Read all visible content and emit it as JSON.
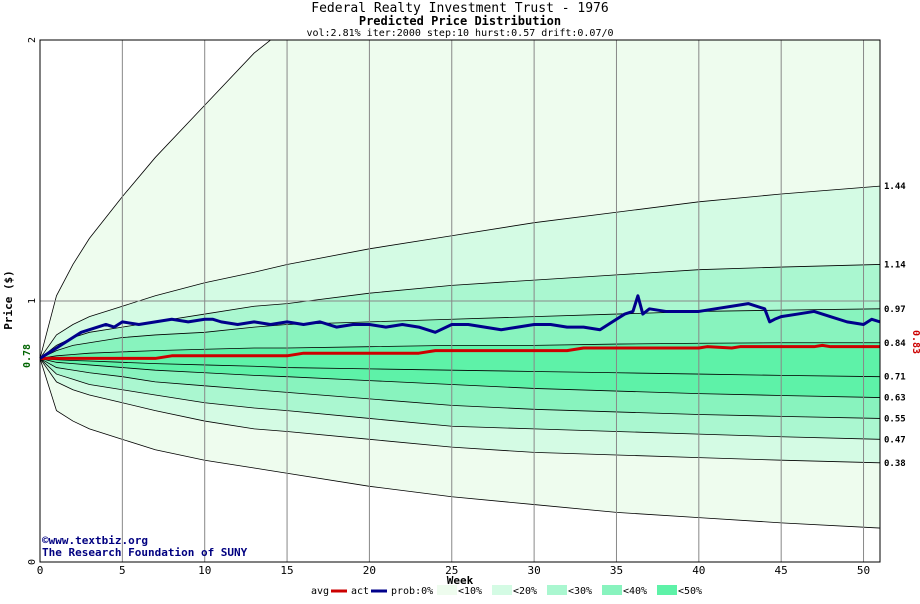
{
  "chart_data": {
    "type": "area",
    "title": "Federal Realty Investment Trust - 1976",
    "subtitle": "Predicted Price Distribution",
    "params": "vol:2.81% iter:2000 step:10 hurst:0.57 drift:0.07/0",
    "xlabel": "Week",
    "ylabel": "Price ($)",
    "xlim": [
      0,
      51
    ],
    "ylim": [
      0,
      2
    ],
    "x_ticks": [
      0,
      5,
      10,
      15,
      20,
      25,
      30,
      35,
      40,
      45,
      50
    ],
    "y_ticks": [
      0,
      1,
      2
    ],
    "start_label": "0.78",
    "end_label": "0.83",
    "right_labels": [
      "1.44",
      "1.14",
      "0.97",
      "0.84",
      "0.71",
      "0.63",
      "0.55",
      "0.47",
      "0.38"
    ],
    "bands": {
      "weeks": [
        0,
        1,
        2,
        3,
        5,
        7,
        10,
        13,
        15,
        20,
        25,
        30,
        35,
        40,
        45,
        51
      ],
      "upper": [
        [
          0.78,
          1.02,
          1.14,
          1.24,
          1.4,
          1.55,
          1.75,
          1.95,
          2.05,
          2.05,
          2.05,
          2.05,
          2.05,
          2.05,
          2.05,
          2.05
        ],
        [
          0.78,
          0.87,
          0.91,
          0.94,
          0.98,
          1.02,
          1.07,
          1.11,
          1.14,
          1.2,
          1.25,
          1.3,
          1.34,
          1.38,
          1.41,
          1.44
        ],
        [
          0.78,
          0.83,
          0.86,
          0.88,
          0.9,
          0.92,
          0.95,
          0.98,
          0.99,
          1.03,
          1.06,
          1.08,
          1.1,
          1.12,
          1.13,
          1.14
        ],
        [
          0.78,
          0.81,
          0.83,
          0.84,
          0.86,
          0.87,
          0.88,
          0.9,
          0.91,
          0.92,
          0.93,
          0.94,
          0.95,
          0.96,
          0.965,
          0.97
        ],
        [
          0.78,
          0.79,
          0.795,
          0.8,
          0.805,
          0.81,
          0.815,
          0.82,
          0.82,
          0.825,
          0.83,
          0.83,
          0.835,
          0.838,
          0.84,
          0.84
        ]
      ],
      "lower": [
        [
          0.78,
          0.58,
          0.54,
          0.51,
          0.47,
          0.43,
          0.39,
          0.36,
          0.34,
          0.29,
          0.25,
          0.22,
          0.19,
          0.17,
          0.15,
          0.13
        ],
        [
          0.78,
          0.69,
          0.66,
          0.64,
          0.61,
          0.58,
          0.54,
          0.51,
          0.5,
          0.47,
          0.44,
          0.42,
          0.41,
          0.4,
          0.39,
          0.38
        ],
        [
          0.78,
          0.72,
          0.7,
          0.68,
          0.66,
          0.64,
          0.61,
          0.59,
          0.58,
          0.55,
          0.52,
          0.51,
          0.5,
          0.49,
          0.48,
          0.47
        ],
        [
          0.78,
          0.745,
          0.735,
          0.725,
          0.71,
          0.69,
          0.675,
          0.66,
          0.65,
          0.625,
          0.6,
          0.585,
          0.575,
          0.565,
          0.558,
          0.55
        ],
        [
          0.78,
          0.765,
          0.76,
          0.755,
          0.745,
          0.735,
          0.725,
          0.715,
          0.71,
          0.695,
          0.68,
          0.665,
          0.655,
          0.645,
          0.638,
          0.63
        ]
      ],
      "mid_line": [
        0.78,
        0.775,
        0.772,
        0.77,
        0.765,
        0.76,
        0.755,
        0.75,
        0.745,
        0.74,
        0.735,
        0.73,
        0.725,
        0.72,
        0.715,
        0.71
      ],
      "fills": [
        "#eefcee",
        "#d4fbe4",
        "#aaf7d0",
        "#88f3be",
        "#5ef2a8"
      ]
    },
    "series": [
      {
        "name": "avg",
        "color": "#cc0000",
        "x": [
          0,
          3,
          7,
          8,
          15,
          16,
          23,
          24,
          32,
          33,
          40,
          40.5,
          42,
          42.5,
          47,
          47.5,
          48,
          51
        ],
        "values": [
          0.78,
          0.78,
          0.78,
          0.79,
          0.79,
          0.8,
          0.8,
          0.81,
          0.81,
          0.82,
          0.82,
          0.825,
          0.82,
          0.825,
          0.825,
          0.83,
          0.825,
          0.825
        ]
      },
      {
        "name": "act",
        "color": "#00008b",
        "x": [
          0,
          0.5,
          1,
          1.5,
          2,
          2.5,
          3,
          3.5,
          4,
          4.5,
          5,
          6,
          7,
          8,
          9,
          10,
          10.5,
          11,
          12,
          13,
          14,
          15,
          16,
          17,
          18,
          19,
          20,
          21,
          22,
          23,
          24,
          25,
          26,
          27,
          28,
          29,
          30,
          31,
          32,
          33,
          34,
          35,
          35.5,
          36,
          36.3,
          36.6,
          37,
          38,
          39,
          40,
          41,
          42,
          43,
          44,
          44.3,
          44.6,
          45,
          46,
          47,
          48,
          49,
          50,
          50.5,
          51
        ],
        "values": [
          0.78,
          0.8,
          0.82,
          0.84,
          0.86,
          0.88,
          0.89,
          0.9,
          0.91,
          0.9,
          0.92,
          0.91,
          0.92,
          0.93,
          0.92,
          0.93,
          0.93,
          0.92,
          0.91,
          0.92,
          0.91,
          0.92,
          0.91,
          0.92,
          0.9,
          0.91,
          0.91,
          0.9,
          0.91,
          0.9,
          0.88,
          0.91,
          0.91,
          0.9,
          0.89,
          0.9,
          0.91,
          0.91,
          0.9,
          0.9,
          0.89,
          0.93,
          0.95,
          0.96,
          1.02,
          0.95,
          0.97,
          0.96,
          0.96,
          0.96,
          0.97,
          0.98,
          0.99,
          0.97,
          0.92,
          0.93,
          0.94,
          0.95,
          0.96,
          0.94,
          0.92,
          0.91,
          0.93,
          0.92
        ]
      }
    ],
    "legend": [
      {
        "label": "avg",
        "color": "#cc0000",
        "kind": "line"
      },
      {
        "label": "act",
        "color": "#00008b",
        "kind": "line"
      },
      {
        "label": "prob:0%",
        "color": "#ffffff",
        "kind": "text"
      },
      {
        "label": "<10%",
        "color": "#eefcee",
        "kind": "swatch"
      },
      {
        "label": "<20%",
        "color": "#d4fbe4",
        "kind": "swatch"
      },
      {
        "label": "<30%",
        "color": "#aaf7d0",
        "kind": "swatch"
      },
      {
        "label": "<40%",
        "color": "#88f3be",
        "kind": "swatch"
      },
      {
        "label": "<50%",
        "color": "#5ef2a8",
        "kind": "swatch"
      }
    ],
    "grid": true,
    "copyright_line1": "www.textbiz.org",
    "copyright_symbol": "©",
    "copyright_line2": "The Research Foundation of SUNY"
  }
}
